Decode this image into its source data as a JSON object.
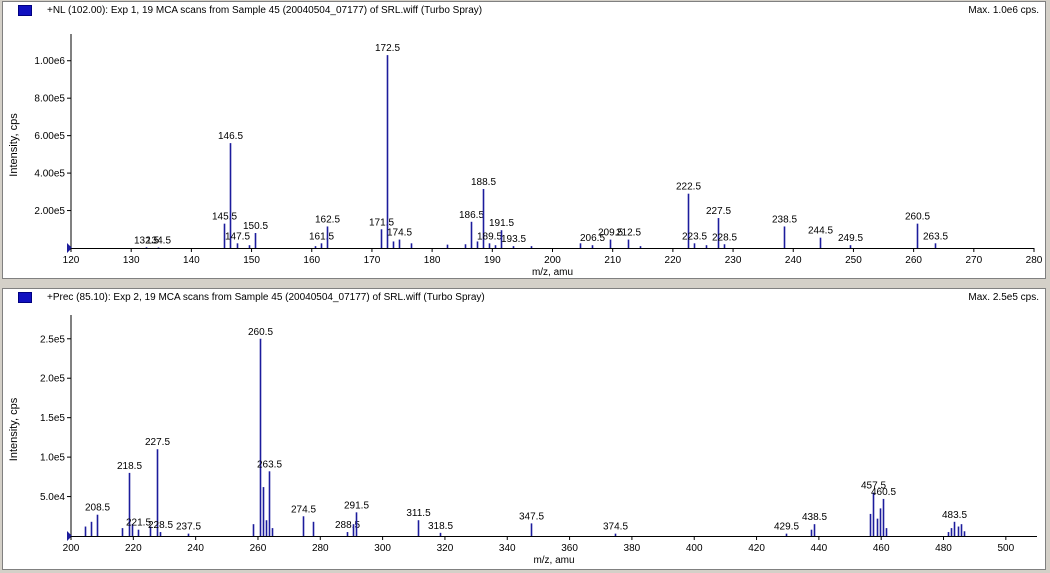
{
  "panels": [
    {
      "title": "+NL (102.00): Exp 1, 19 MCA scans from Sample 45 (20040504_07177) of SRL.wiff (Turbo Spray)",
      "max_label": "Max. 1.0e6 cps."
    },
    {
      "title": "+Prec (85.10): Exp 2, 19 MCA scans from Sample 45 (20040504_07177) of SRL.wiff (Turbo Spray)",
      "max_label": "Max. 2.5e5 cps."
    }
  ],
  "chart_data": [
    {
      "type": "bar",
      "style": "stick-spectrum",
      "title": "+NL (102.00): Exp 1, 19 MCA scans from Sample 45 (20040504_07177) of SRL.wiff (Turbo Spray)",
      "xlabel": "m/z, amu",
      "ylabel": "Intensity, cps",
      "xlim": [
        120,
        280
      ],
      "ylim": [
        0,
        1100000
      ],
      "x_ticks": [
        120,
        130,
        140,
        150,
        160,
        170,
        180,
        190,
        200,
        210,
        220,
        230,
        240,
        250,
        260,
        270,
        280
      ],
      "y_ticks": [
        200000,
        400000,
        600000,
        800000,
        1000000
      ],
      "y_tick_labels": [
        "2.00e5",
        "4.00e5",
        "6.00e5",
        "8.00e5",
        "1.00e6"
      ],
      "color": "#1c1c9c",
      "peaks": [
        {
          "x": 132.5,
          "y": 4000,
          "label": "132.5"
        },
        {
          "x": 134.5,
          "y": 3000,
          "label": "134.5"
        },
        {
          "x": 145.5,
          "y": 130000,
          "label": "145.5"
        },
        {
          "x": 146.5,
          "y": 560000,
          "label": "146.5"
        },
        {
          "x": 147.5,
          "y": 25000,
          "label": "147.5"
        },
        {
          "x": 149.5,
          "y": 15000
        },
        {
          "x": 150.5,
          "y": 80000,
          "label": "150.5"
        },
        {
          "x": 160.5,
          "y": 10000
        },
        {
          "x": 161.5,
          "y": 25000,
          "label": "161.5"
        },
        {
          "x": 162.5,
          "y": 115000,
          "label": "162.5"
        },
        {
          "x": 171.5,
          "y": 100000,
          "label": "171.5"
        },
        {
          "x": 172.5,
          "y": 1030000,
          "label": "172.5"
        },
        {
          "x": 173.5,
          "y": 35000
        },
        {
          "x": 174.5,
          "y": 45000,
          "label": "174.5"
        },
        {
          "x": 176.5,
          "y": 25000
        },
        {
          "x": 182.5,
          "y": 18000
        },
        {
          "x": 185.5,
          "y": 20000
        },
        {
          "x": 186.5,
          "y": 140000,
          "label": "186.5"
        },
        {
          "x": 187.5,
          "y": 35000
        },
        {
          "x": 188.5,
          "y": 315000,
          "label": "188.5"
        },
        {
          "x": 189.5,
          "y": 25000,
          "label": "189.5"
        },
        {
          "x": 190.5,
          "y": 15000
        },
        {
          "x": 191.5,
          "y": 95000,
          "label": "191.5"
        },
        {
          "x": 193.5,
          "y": 10000,
          "label": "193.5"
        },
        {
          "x": 196.5,
          "y": 10000
        },
        {
          "x": 204.5,
          "y": 25000
        },
        {
          "x": 206.5,
          "y": 15000,
          "label": "206.5"
        },
        {
          "x": 209.5,
          "y": 45000,
          "label": "209.5"
        },
        {
          "x": 212.5,
          "y": 45000,
          "label": "212.5"
        },
        {
          "x": 214.5,
          "y": 10000
        },
        {
          "x": 222.5,
          "y": 290000,
          "label": "222.5"
        },
        {
          "x": 223.5,
          "y": 25000,
          "label": "223.5"
        },
        {
          "x": 225.5,
          "y": 15000
        },
        {
          "x": 227.5,
          "y": 160000,
          "label": "227.5"
        },
        {
          "x": 228.5,
          "y": 20000,
          "label": "228.5"
        },
        {
          "x": 238.5,
          "y": 115000,
          "label": "238.5"
        },
        {
          "x": 244.5,
          "y": 55000,
          "label": "244.5"
        },
        {
          "x": 249.5,
          "y": 15000,
          "label": "249.5"
        },
        {
          "x": 260.5,
          "y": 130000,
          "label": "260.5"
        },
        {
          "x": 263.5,
          "y": 25000,
          "label": "263.5"
        }
      ]
    },
    {
      "type": "bar",
      "style": "stick-spectrum",
      "title": "+Prec (85.10): Exp 2, 19 MCA scans from Sample 45 (20040504_07177) of SRL.wiff (Turbo Spray)",
      "xlabel": "m/z, amu",
      "ylabel": "Intensity, cps",
      "xlim": [
        200,
        510
      ],
      "ylim": [
        0,
        270000
      ],
      "x_ticks": [
        200,
        220,
        240,
        260,
        280,
        300,
        320,
        340,
        360,
        380,
        400,
        420,
        440,
        460,
        480,
        500
      ],
      "y_ticks": [
        50000,
        100000,
        150000,
        200000,
        250000
      ],
      "y_tick_labels": [
        "5.0e4",
        "1.0e5",
        "1.5e5",
        "2.0e5",
        "2.5e5"
      ],
      "color": "#1c1c9c",
      "peaks": [
        {
          "x": 204.5,
          "y": 12000
        },
        {
          "x": 206.5,
          "y": 18000
        },
        {
          "x": 208.5,
          "y": 27000,
          "label": "208.5"
        },
        {
          "x": 216.5,
          "y": 10000
        },
        {
          "x": 218.5,
          "y": 80000,
          "label": "218.5"
        },
        {
          "x": 219.5,
          "y": 15000
        },
        {
          "x": 221.5,
          "y": 8000,
          "label": "221.5"
        },
        {
          "x": 225.5,
          "y": 12000
        },
        {
          "x": 227.5,
          "y": 110000,
          "label": "227.5"
        },
        {
          "x": 228.5,
          "y": 5000,
          "label": "228.5"
        },
        {
          "x": 237.5,
          "y": 3000,
          "label": "237.5"
        },
        {
          "x": 258.5,
          "y": 15000
        },
        {
          "x": 260.5,
          "y": 250000,
          "label": "260.5"
        },
        {
          "x": 261.5,
          "y": 62000
        },
        {
          "x": 262.5,
          "y": 20000
        },
        {
          "x": 263.5,
          "y": 82000,
          "label": "263.5"
        },
        {
          "x": 264.5,
          "y": 10000
        },
        {
          "x": 274.5,
          "y": 25000,
          "label": "274.5"
        },
        {
          "x": 277.5,
          "y": 18000
        },
        {
          "x": 288.5,
          "y": 5000,
          "label": "288.5"
        },
        {
          "x": 290.5,
          "y": 15000
        },
        {
          "x": 291.5,
          "y": 30000,
          "label": "291.5"
        },
        {
          "x": 311.5,
          "y": 20000,
          "label": "311.5"
        },
        {
          "x": 318.5,
          "y": 4000,
          "label": "318.5"
        },
        {
          "x": 347.5,
          "y": 16000,
          "label": "347.5"
        },
        {
          "x": 374.5,
          "y": 3000,
          "label": "374.5"
        },
        {
          "x": 429.5,
          "y": 3000,
          "label": "429.5"
        },
        {
          "x": 437.5,
          "y": 8000
        },
        {
          "x": 438.5,
          "y": 15000,
          "label": "438.5"
        },
        {
          "x": 456.5,
          "y": 28000
        },
        {
          "x": 457.5,
          "y": 55000,
          "label": "457.5"
        },
        {
          "x": 458.5,
          "y": 22000
        },
        {
          "x": 459.5,
          "y": 35000
        },
        {
          "x": 460.5,
          "y": 47000,
          "label": "460.5"
        },
        {
          "x": 461.5,
          "y": 10000
        },
        {
          "x": 481.5,
          "y": 5000
        },
        {
          "x": 482.5,
          "y": 10000
        },
        {
          "x": 483.5,
          "y": 18000,
          "label": "483.5"
        },
        {
          "x": 484.5,
          "y": 12000
        },
        {
          "x": 485.5,
          "y": 15000
        },
        {
          "x": 486.5,
          "y": 6000
        }
      ]
    }
  ]
}
